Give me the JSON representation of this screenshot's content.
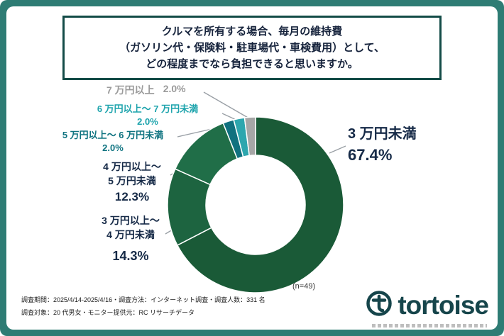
{
  "title": {
    "line1": "クルマを所有する場合、毎月の維持費",
    "line2": "（ガソリン代・保険料・駐車場代・車検費用）として、",
    "line3": "どの程度までなら負担できると思いますか。"
  },
  "chart_data": {
    "type": "pie",
    "subtype": "donut",
    "title": "クルマを所有する場合、毎月の維持費として、どの程度までなら負担できると思いますか。",
    "n_label": "(n=49)",
    "start_angle_deg": 0,
    "direction": "clockwise",
    "segments": [
      {
        "id": "under-3man",
        "callout": "3 万円未満",
        "pct": "67.4%",
        "value": 67.4,
        "color": "#1a5a37"
      },
      {
        "id": "3man-to-4man",
        "callout": "3 万円以上〜\n4 万円未満",
        "pct": "14.3%",
        "value": 14.3,
        "color": "#1d6440"
      },
      {
        "id": "4man-to-5man",
        "callout": "4 万円以上〜\n5 万円未満",
        "pct": "12.3%",
        "value": 12.3,
        "color": "#206e48"
      },
      {
        "id": "5man-to-6man",
        "callout": "5 万円以上〜 6 万円未満",
        "pct": "2.0%",
        "value": 2.0,
        "color": "#10717f"
      },
      {
        "id": "6man-to-7man",
        "callout": "6 万円以上〜 7 万円未満",
        "pct": "2.0%",
        "value": 2.0,
        "color": "#2da6ae"
      },
      {
        "id": "7man-plus",
        "callout": "7 万円以上",
        "pct": "2.0%",
        "value": 2.0,
        "color": "#a6a6a6"
      }
    ]
  },
  "footer": {
    "line1": "調査期間：2025/4/14-2025/4/16・調査方法：インターネット調査・調査人数：331 名",
    "line2": "調査対象：20 代男女・モニター提供元：RC リサーチデータ"
  },
  "logo": {
    "wordmark": "tortoise"
  }
}
